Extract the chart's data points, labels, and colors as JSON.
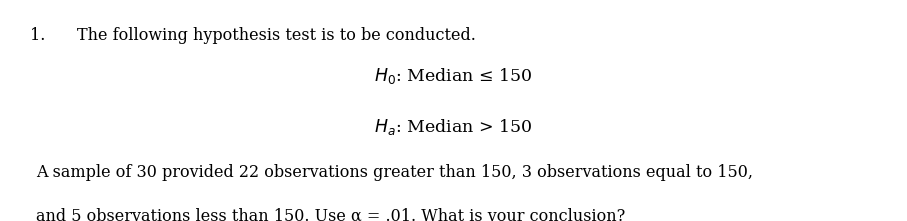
{
  "background_color": "#ffffff",
  "number_label": "1.",
  "line1": "The following hypothesis test is to be conducted.",
  "h0_text": "$H_0$: Median ≤ 150",
  "ha_text": "$H_a$: Median > 150",
  "body_line1": "A sample of 30 provided 22 observations greater than 150, 3 observations equal to 150,",
  "body_line2": "and 5 observations less than 150. Use α = .01. What is your conclusion?",
  "font_size_main": 11.5,
  "font_size_hypothesis": 12.5,
  "text_color": "#000000",
  "font_family": "serif",
  "fig_width": 9.07,
  "fig_height": 2.21,
  "dpi": 100
}
